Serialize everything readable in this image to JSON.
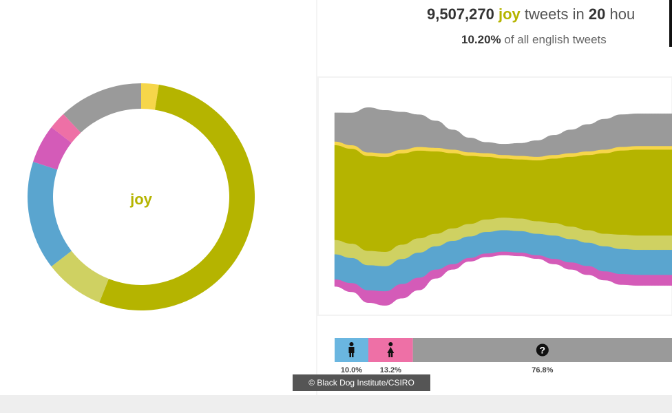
{
  "header": {
    "count": "9,507,270",
    "emotion": "joy",
    "tweets_in": "tweets in",
    "hours_value": "20",
    "hours_unit": "hou",
    "percent": "10.20%",
    "percent_suffix": "of all english tweets"
  },
  "credit": "© Black Dog Institute/CSIRO",
  "colors": {
    "joy": "#b5b400",
    "yellow": "#f6d64a",
    "lime": "#cfd162",
    "blue": "#5aa5cf",
    "magenta": "#d45bb8",
    "pink": "#ee70a6",
    "gray": "#9a9a9a",
    "male": "#6ab6e0",
    "female": "#ee70a6",
    "unknown": "#9a9a9a"
  },
  "chart_data": [
    {
      "type": "pie",
      "center_label": "joy",
      "slices": [
        {
          "value": 2.5,
          "color": "yellow"
        },
        {
          "value": 53.5,
          "color": "joy"
        },
        {
          "value": 8.5,
          "color": "lime"
        },
        {
          "value": 15.5,
          "color": "blue"
        },
        {
          "value": 5.5,
          "color": "magenta"
        },
        {
          "value": 2.5,
          "color": "pink"
        },
        {
          "value": 12.0,
          "color": "gray"
        }
      ]
    },
    {
      "type": "area",
      "x": [
        0,
        1,
        2,
        3,
        4,
        5,
        6,
        7,
        8,
        9,
        10,
        11,
        12,
        13,
        14,
        15,
        16,
        17,
        18,
        19,
        20
      ],
      "stacked": true,
      "series": [
        {
          "color": "magenta",
          "values": [
            4,
            5,
            7,
            8,
            8,
            7,
            5,
            3,
            2,
            2,
            2,
            2,
            2,
            3,
            4,
            5,
            5,
            6,
            6,
            6,
            6
          ]
        },
        {
          "color": "blue",
          "values": [
            14,
            14,
            14,
            14,
            14,
            14,
            13,
            13,
            12,
            12,
            12,
            12,
            12,
            13,
            13,
            13,
            14,
            14,
            14,
            14,
            14
          ]
        },
        {
          "color": "lime",
          "values": [
            8,
            8,
            8,
            8,
            8,
            8,
            7,
            7,
            7,
            7,
            7,
            7,
            7,
            7,
            7,
            7,
            7,
            8,
            8,
            8,
            8
          ]
        },
        {
          "color": "joy",
          "values": [
            53,
            53,
            53,
            53,
            51,
            49,
            46,
            42,
            38,
            35,
            33,
            33,
            34,
            36,
            39,
            42,
            45,
            47,
            48,
            48,
            48
          ]
        },
        {
          "color": "yellow",
          "values": [
            2,
            2,
            2,
            2,
            2,
            2,
            2,
            2,
            2,
            2,
            2,
            2,
            2,
            2,
            2,
            2,
            2,
            2,
            2,
            2,
            2
          ]
        },
        {
          "color": "gray",
          "values": [
            16,
            18,
            25,
            24,
            21,
            18,
            15,
            11,
            8,
            6,
            6,
            7,
            9,
            11,
            13,
            15,
            17,
            18,
            18,
            18,
            18
          ]
        }
      ]
    },
    {
      "type": "bar",
      "orientation": "stacked-horizontal",
      "categories": [
        "male",
        "female",
        "unknown"
      ],
      "icons": [
        "male-icon",
        "female-icon",
        "question-icon"
      ],
      "values": [
        10.0,
        13.2,
        76.8
      ],
      "labels": [
        "10.0%",
        "13.2%",
        "76.8%"
      ]
    }
  ]
}
